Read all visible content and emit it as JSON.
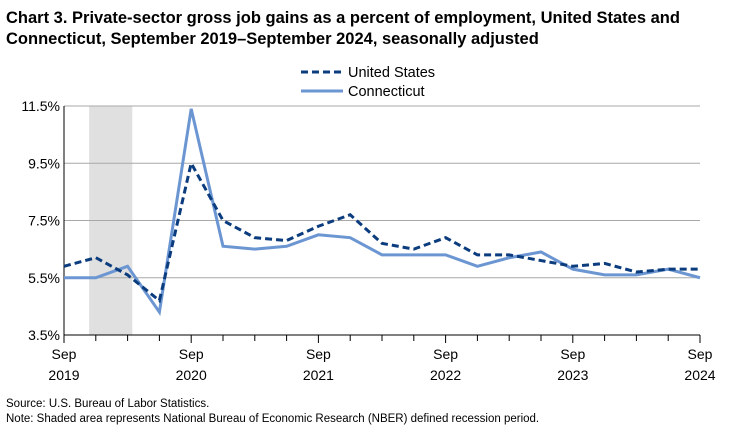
{
  "title": "Chart 3. Private-sector gross job gains as a percent of employment, United States and Connecticut, September 2019–September 2024, seasonally adjusted",
  "source": "Source: U.S. Bureau of Labor Statistics.",
  "note": "Note: Shaded area represents National Bureau of Economic Research (NBER) defined recession period.",
  "chart_data": {
    "type": "line",
    "x": [
      "2019-Q3",
      "2019-Q4",
      "2020-Q1",
      "2020-Q2",
      "2020-Q3",
      "2020-Q4",
      "2021-Q1",
      "2021-Q2",
      "2021-Q3",
      "2021-Q4",
      "2022-Q1",
      "2022-Q2",
      "2022-Q3",
      "2022-Q4",
      "2023-Q1",
      "2023-Q2",
      "2023-Q3",
      "2023-Q4",
      "2024-Q1",
      "2024-Q2",
      "2024-Q3"
    ],
    "x_tick_labels": [
      {
        "month": "Sep",
        "year": "2019"
      },
      {
        "month": "Sep",
        "year": "2020"
      },
      {
        "month": "Sep",
        "year": "2021"
      },
      {
        "month": "Sep",
        "year": "2022"
      },
      {
        "month": "Sep",
        "year": "2023"
      },
      {
        "month": "Sep",
        "year": "2024"
      }
    ],
    "y_ticks": [
      "3.5%",
      "5.5%",
      "7.5%",
      "9.5%",
      "11.5%"
    ],
    "ylim": [
      3.5,
      11.5
    ],
    "recession": {
      "start": "2019-Q4",
      "end": "2020-Q1",
      "color": "#e0e0e0"
    },
    "grid": true,
    "legend_position": "top-center",
    "series": [
      {
        "name": "United States",
        "color": "#0b3c7e",
        "style": "dashed",
        "values": [
          5.9,
          6.2,
          5.6,
          4.7,
          9.5,
          7.5,
          6.9,
          6.8,
          7.3,
          7.7,
          6.7,
          6.5,
          6.9,
          6.3,
          6.3,
          6.1,
          5.9,
          6.0,
          5.7,
          5.8,
          5.8
        ]
      },
      {
        "name": "Connecticut",
        "color": "#6b96d2",
        "style": "solid",
        "values": [
          5.5,
          5.5,
          5.9,
          4.3,
          11.4,
          6.6,
          6.5,
          6.6,
          7.0,
          6.9,
          6.3,
          6.3,
          6.3,
          5.9,
          6.2,
          6.4,
          5.8,
          5.6,
          5.6,
          5.8,
          5.5
        ]
      }
    ]
  }
}
